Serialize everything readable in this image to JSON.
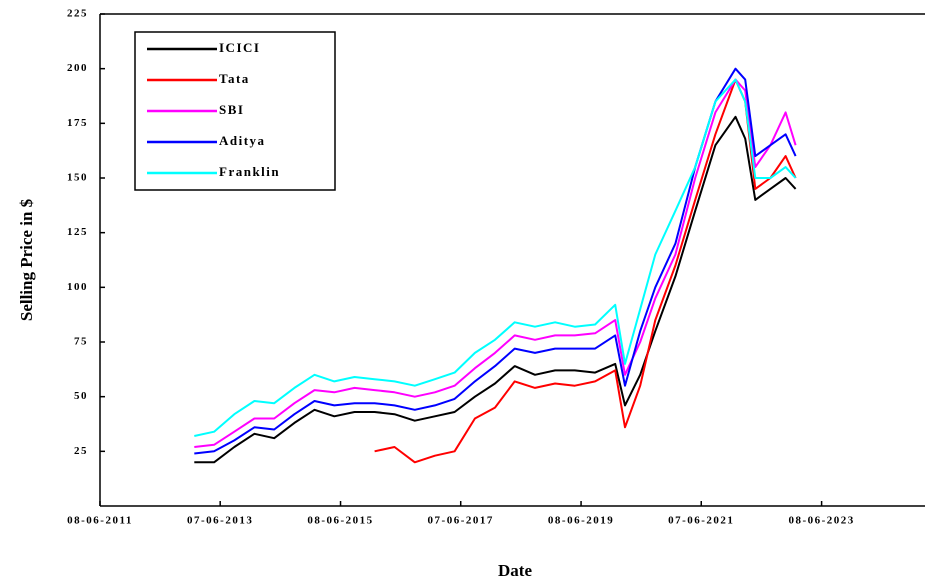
{
  "chart_data": {
    "type": "line",
    "xlabel": "Date",
    "ylabel": "Selling Price in $",
    "x": [
      "2013-01-01",
      "2013-05-01",
      "2013-09-01",
      "2014-01-01",
      "2014-05-01",
      "2014-09-01",
      "2015-01-01",
      "2015-05-01",
      "2015-09-01",
      "2016-01-01",
      "2016-05-01",
      "2016-09-01",
      "2017-01-01",
      "2017-05-01",
      "2017-09-01",
      "2018-01-01",
      "2018-05-01",
      "2018-09-01",
      "2019-01-01",
      "2019-05-01",
      "2019-09-01",
      "2020-01-01",
      "2020-03-01",
      "2020-06-01",
      "2020-09-01",
      "2021-01-01",
      "2021-05-01",
      "2021-09-01",
      "2022-01-01",
      "2022-03-01",
      "2022-05-01",
      "2022-08-01",
      "2022-11-01",
      "2023-01-01"
    ],
    "series": [
      {
        "name": "ICICI",
        "color": "#000000",
        "values": [
          20,
          20,
          27,
          33,
          31,
          38,
          44,
          41,
          43,
          43,
          42,
          39,
          41,
          43,
          50,
          56,
          64,
          60,
          62,
          62,
          61,
          65,
          46,
          60,
          80,
          105,
          135,
          165,
          178,
          168,
          140,
          145,
          150,
          145
        ]
      },
      {
        "name": "Tata",
        "color": "#ff0000",
        "values": [
          null,
          null,
          null,
          null,
          null,
          null,
          null,
          null,
          null,
          25,
          27,
          20,
          23,
          25,
          40,
          45,
          57,
          54,
          56,
          55,
          57,
          62,
          36,
          55,
          85,
          110,
          140,
          170,
          195,
          185,
          145,
          150,
          160,
          150
        ]
      },
      {
        "name": "SBI",
        "color": "#ff00ff",
        "values": [
          27,
          28,
          34,
          40,
          40,
          47,
          53,
          52,
          54,
          53,
          52,
          50,
          52,
          55,
          63,
          70,
          78,
          76,
          78,
          78,
          79,
          85,
          60,
          75,
          95,
          115,
          150,
          180,
          195,
          190,
          155,
          165,
          180,
          165
        ]
      },
      {
        "name": "Aditya",
        "color": "#0000ff",
        "values": [
          24,
          25,
          30,
          36,
          35,
          42,
          48,
          46,
          47,
          47,
          46,
          44,
          46,
          49,
          57,
          64,
          72,
          70,
          72,
          72,
          72,
          78,
          55,
          80,
          100,
          120,
          155,
          185,
          200,
          195,
          160,
          165,
          170,
          160
        ]
      },
      {
        "name": "Franklin",
        "color": "#00ffff",
        "values": [
          32,
          34,
          42,
          48,
          47,
          54,
          60,
          57,
          59,
          58,
          57,
          55,
          58,
          61,
          70,
          76,
          84,
          82,
          84,
          82,
          83,
          92,
          65,
          90,
          115,
          135,
          155,
          185,
          195,
          185,
          150,
          150,
          155,
          150
        ]
      }
    ],
    "xlim": [
      "2011-06-08",
      "2025-02-25"
    ],
    "xticks": [
      {
        "value": "2011-06-08",
        "label": "08-06-2011"
      },
      {
        "value": "2013-06-07",
        "label": "07-06-2013"
      },
      {
        "value": "2015-06-08",
        "label": "08-06-2015"
      },
      {
        "value": "2017-06-07",
        "label": "07-06-2017"
      },
      {
        "value": "2019-06-08",
        "label": "08-06-2019"
      },
      {
        "value": "2021-06-07",
        "label": "07-06-2021"
      },
      {
        "value": "2023-06-08",
        "label": "08-06-2023"
      }
    ],
    "ylim": [
      0,
      225
    ],
    "yticks": [
      25,
      50,
      75,
      100,
      125,
      150,
      175,
      200,
      225
    ],
    "legend": "upper left"
  }
}
